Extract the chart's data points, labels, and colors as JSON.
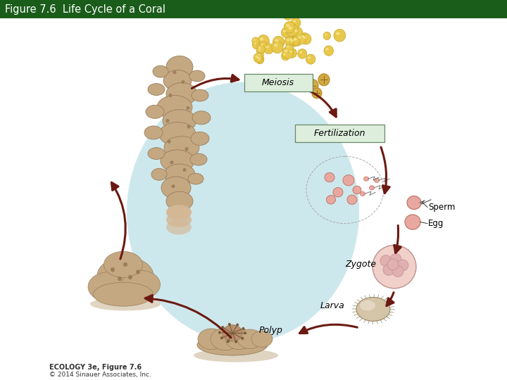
{
  "title": "Figure 7.6  Life Cycle of a Coral",
  "title_bg": "#1a5c1a",
  "title_color": "#ffffff",
  "title_fontsize": 10.5,
  "bg_color": "#ffffff",
  "oval_color": "#cde8ed",
  "arrow_color": "#6b1a12",
  "coral_color": "#c4a882",
  "coral_edge": "#9b7d5a",
  "egg_fill": "#e8c84a",
  "egg_edge": "#c8a830",
  "pink_fill": "#e8a8a0",
  "pink_edge": "#c07868",
  "zygote_fill": "#e0b0b0",
  "zygote_edge": "#b08080",
  "larva_fill": "#d4c4a8",
  "larva_edge": "#a08860",
  "footer_bold": "ECOLOGY 3e, Figure 7.6",
  "footer_normal": "© 2014 Sinauer Associates, Inc."
}
